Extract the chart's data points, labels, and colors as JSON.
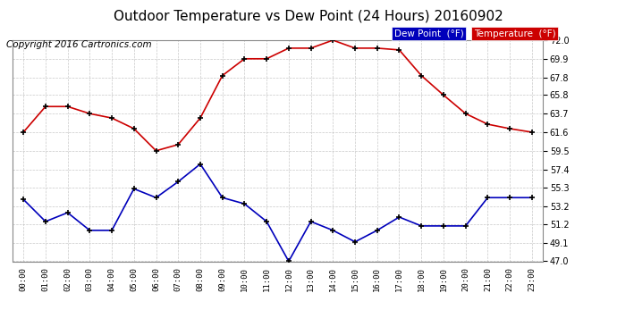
{
  "title": "Outdoor Temperature vs Dew Point (24 Hours) 20160902",
  "copyright": "Copyright 2016 Cartronics.com",
  "hours": [
    "00:00",
    "01:00",
    "02:00",
    "03:00",
    "04:00",
    "05:00",
    "06:00",
    "07:00",
    "08:00",
    "09:00",
    "10:00",
    "11:00",
    "12:00",
    "13:00",
    "14:00",
    "15:00",
    "16:00",
    "17:00",
    "18:00",
    "19:00",
    "20:00",
    "21:00",
    "22:00",
    "23:00"
  ],
  "temperature": [
    61.6,
    64.5,
    64.5,
    63.7,
    63.2,
    62.0,
    59.5,
    60.2,
    63.2,
    68.0,
    69.9,
    69.9,
    71.1,
    71.1,
    72.0,
    71.1,
    71.1,
    70.9,
    68.0,
    65.8,
    63.7,
    62.5,
    62.0,
    61.6
  ],
  "dew_point": [
    54.0,
    51.5,
    52.5,
    50.5,
    50.5,
    55.2,
    54.2,
    56.0,
    58.0,
    54.2,
    53.5,
    51.5,
    47.0,
    51.5,
    50.5,
    49.2,
    50.5,
    52.0,
    51.0,
    51.0,
    51.0,
    54.2,
    54.2,
    54.2
  ],
  "ylim": [
    47.0,
    72.0
  ],
  "yticks": [
    47.0,
    49.1,
    51.2,
    53.2,
    55.3,
    57.4,
    59.5,
    61.6,
    63.7,
    65.8,
    67.8,
    69.9,
    72.0
  ],
  "temp_color": "#cc0000",
  "dew_color": "#0000bb",
  "bg_color": "#ffffff",
  "plot_bg_color": "#ffffff",
  "grid_color": "#bbbbbb",
  "legend_dew_bg": "#0000bb",
  "legend_temp_bg": "#cc0000",
  "title_fontsize": 11,
  "copyright_fontsize": 7.5
}
